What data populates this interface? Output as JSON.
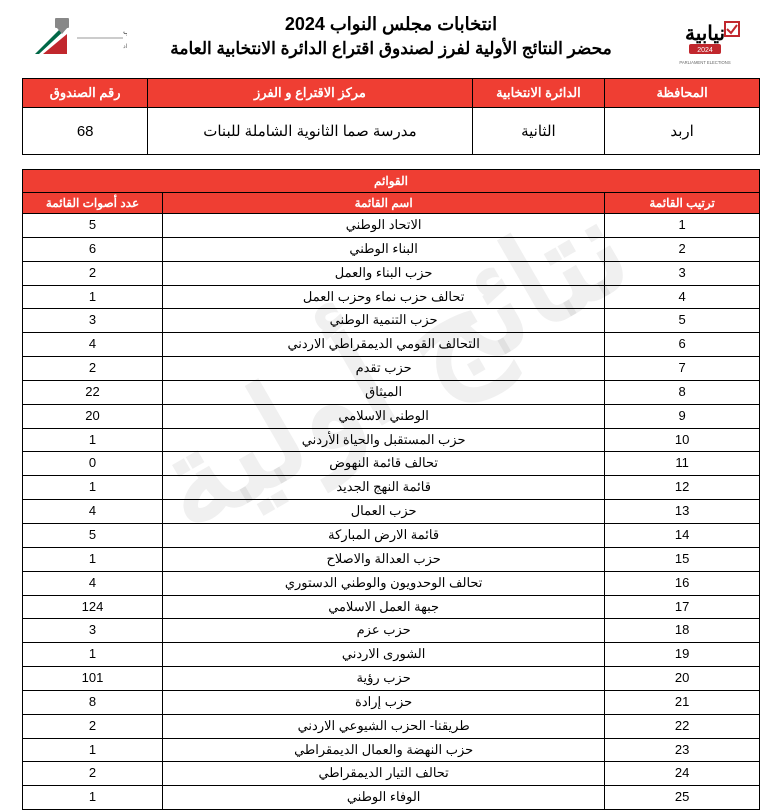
{
  "watermark": "نتائج أولية",
  "titles": {
    "main": "انتخابات مجلس النواب 2024",
    "sub": "محضر النتائج الأولية لفرز لصندوق اقتراع الدائرة الانتخابية العامة"
  },
  "logos": {
    "right_label": "نيابية 2024",
    "right_sub": "PARLIAMENT ELECTIONS",
    "left_label": "الهيئة المستقلة للانتخاب",
    "left_sub": "أمانة . نزاهة . حياد"
  },
  "info": {
    "headers": {
      "governorate": "المحافظة",
      "district": "الدائرة الانتخابية",
      "center": "مركز الاقتراع و الفرز",
      "box": "رقم الصندوق"
    },
    "values": {
      "governorate": "اربد",
      "district": "الثانية",
      "center": "مدرسة صما الثانوية الشاملة للبنات",
      "box": "68"
    }
  },
  "results": {
    "section_title": "القوائم",
    "headers": {
      "rank": "ترتيب القائمة",
      "name": "اسم القائمة",
      "votes": "عدد أصوات القائمة"
    },
    "rows": [
      {
        "rank": "1",
        "name": "الاتحاد الوطني",
        "votes": "5"
      },
      {
        "rank": "2",
        "name": "البناء الوطني",
        "votes": "6"
      },
      {
        "rank": "3",
        "name": "حزب البناء والعمل",
        "votes": "2"
      },
      {
        "rank": "4",
        "name": "تحالف حزب نماء وحزب العمل",
        "votes": "1"
      },
      {
        "rank": "5",
        "name": "حزب التنمية الوطني",
        "votes": "3"
      },
      {
        "rank": "6",
        "name": "التحالف القومي الديمقراطي الاردني",
        "votes": "4"
      },
      {
        "rank": "7",
        "name": "حزب تقدم",
        "votes": "2"
      },
      {
        "rank": "8",
        "name": "الميثاق",
        "votes": "22"
      },
      {
        "rank": "9",
        "name": "الوطني الاسلامي",
        "votes": "20"
      },
      {
        "rank": "10",
        "name": "حزب المستقبل والحياة الأردني",
        "votes": "1"
      },
      {
        "rank": "11",
        "name": "تحالف قائمة النهوض",
        "votes": "0"
      },
      {
        "rank": "12",
        "name": "قائمة النهج الجديد",
        "votes": "1"
      },
      {
        "rank": "13",
        "name": "حزب العمال",
        "votes": "4"
      },
      {
        "rank": "14",
        "name": "قائمة الارض المباركة",
        "votes": "5"
      },
      {
        "rank": "15",
        "name": "حزب العدالة والاصلاح",
        "votes": "1"
      },
      {
        "rank": "16",
        "name": "تحالف الوحدويون والوطني الدستوري",
        "votes": "4"
      },
      {
        "rank": "17",
        "name": "جبهة العمل الاسلامي",
        "votes": "124"
      },
      {
        "rank": "18",
        "name": "حزب عزم",
        "votes": "3"
      },
      {
        "rank": "19",
        "name": "الشورى الاردني",
        "votes": "1"
      },
      {
        "rank": "20",
        "name": "حزب رؤية",
        "votes": "101"
      },
      {
        "rank": "21",
        "name": "حزب إرادة",
        "votes": "8"
      },
      {
        "rank": "22",
        "name": "طريقنا- الحزب الشيوعي الاردني",
        "votes": "2"
      },
      {
        "rank": "23",
        "name": "حزب النهضة والعمال الديمقراطي",
        "votes": "1"
      },
      {
        "rank": "24",
        "name": "تحالف التيار الديمقراطي",
        "votes": "2"
      },
      {
        "rank": "25",
        "name": "الوفاء الوطني",
        "votes": "1"
      }
    ]
  },
  "style": {
    "header_bg": "#ef3e33",
    "header_fg": "#ffffff",
    "border_color": "#000000",
    "page_bg": "#ffffff",
    "watermark_color": "rgba(0,0,0,0.06)",
    "title_fontsize_pt": 14,
    "cell_fontsize_pt": 10
  }
}
